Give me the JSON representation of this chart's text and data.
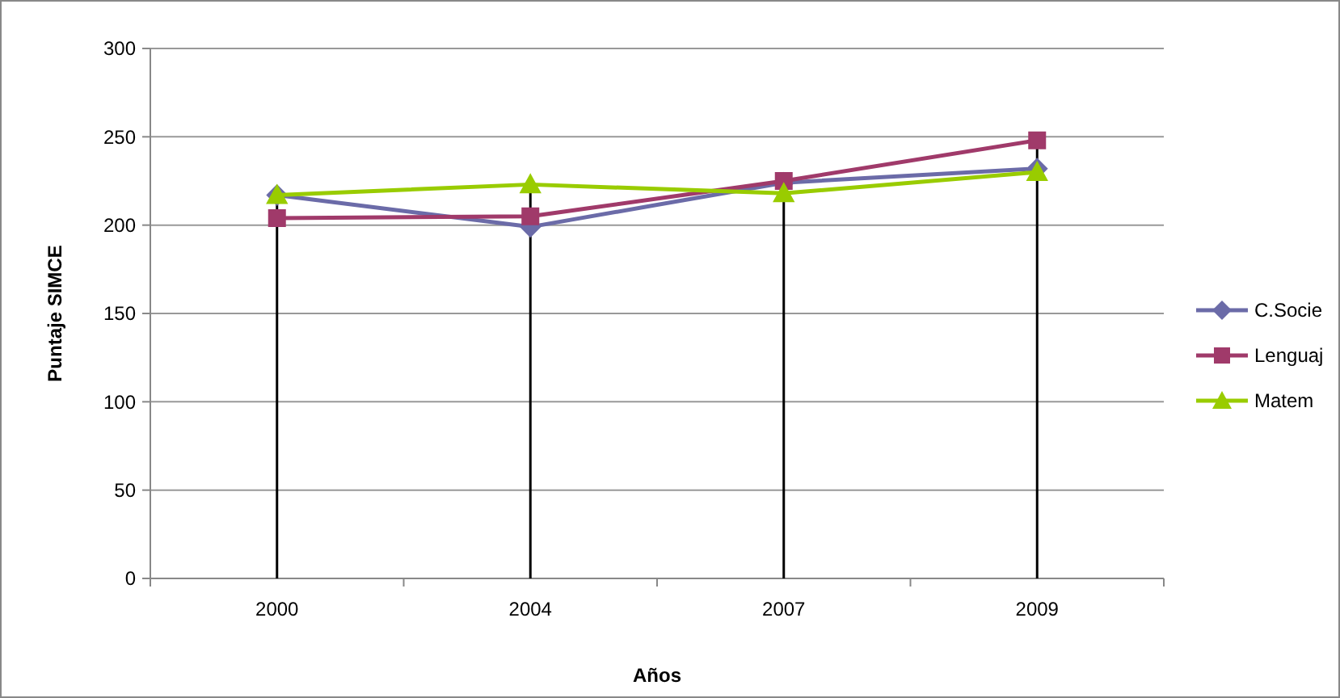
{
  "chart_data": {
    "type": "line",
    "xlabel": "Años",
    "ylabel": "Puntaje SIMCE",
    "categories": [
      "2000",
      "2004",
      "2007",
      "2009"
    ],
    "series": [
      {
        "name": "C.Socie",
        "color": "#6b6ba8",
        "marker": "diamond",
        "values": [
          217,
          199,
          224,
          232
        ]
      },
      {
        "name": "Lenguaj",
        "color": "#a03a6a",
        "marker": "square",
        "values": [
          204,
          205,
          225,
          248
        ]
      },
      {
        "name": "Matem",
        "color": "#99cc00",
        "marker": "triangle",
        "values": [
          217,
          223,
          218,
          230
        ]
      }
    ],
    "ylim": [
      0,
      300
    ],
    "yticks": [
      0,
      50,
      100,
      150,
      200,
      250,
      300
    ],
    "grid": "y",
    "legend": "right",
    "ref_lines": [
      {
        "axis": "x",
        "value": "2000",
        "color": "#000000"
      },
      {
        "axis": "x",
        "value": "2004",
        "color": "#000000"
      },
      {
        "axis": "x",
        "value": "2007",
        "color": "#000000"
      },
      {
        "axis": "x",
        "value": "2009",
        "color": "#000000"
      }
    ]
  }
}
